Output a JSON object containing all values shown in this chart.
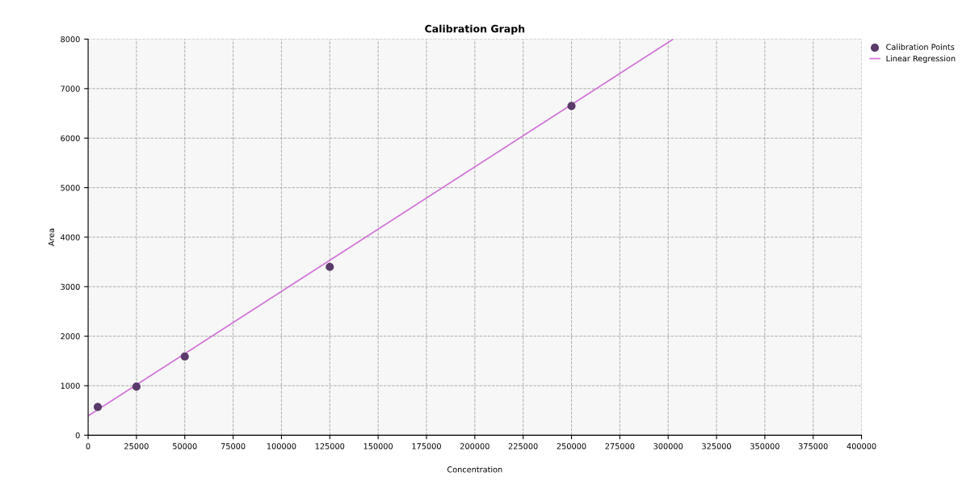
{
  "chart_data": {
    "type": "scatter",
    "title": "Calibration Graph",
    "xlabel": "Concentration",
    "ylabel": "Area",
    "xlim": [
      0,
      400000
    ],
    "xticks": [
      0,
      25000,
      50000,
      75000,
      100000,
      125000,
      150000,
      175000,
      200000,
      225000,
      250000,
      275000,
      300000,
      325000,
      350000,
      375000,
      400000
    ],
    "ylim": [
      0,
      8000
    ],
    "yticks": [
      0,
      1000,
      2000,
      3000,
      4000,
      5000,
      6000,
      7000,
      8000
    ],
    "grid": true,
    "legend": "top right",
    "series": [
      {
        "name": "Calibration Points",
        "marker": "circle",
        "color": "#5a3a6a",
        "x": [
          5000,
          25000,
          50000,
          125000,
          250000
        ],
        "values": [
          570,
          980,
          1590,
          3400,
          6650
        ]
      },
      {
        "name": "Linear Regression",
        "type": "line",
        "color": "#d070d8",
        "x": [
          0,
          302600
        ],
        "values": [
          390,
          8000
        ]
      }
    ]
  }
}
